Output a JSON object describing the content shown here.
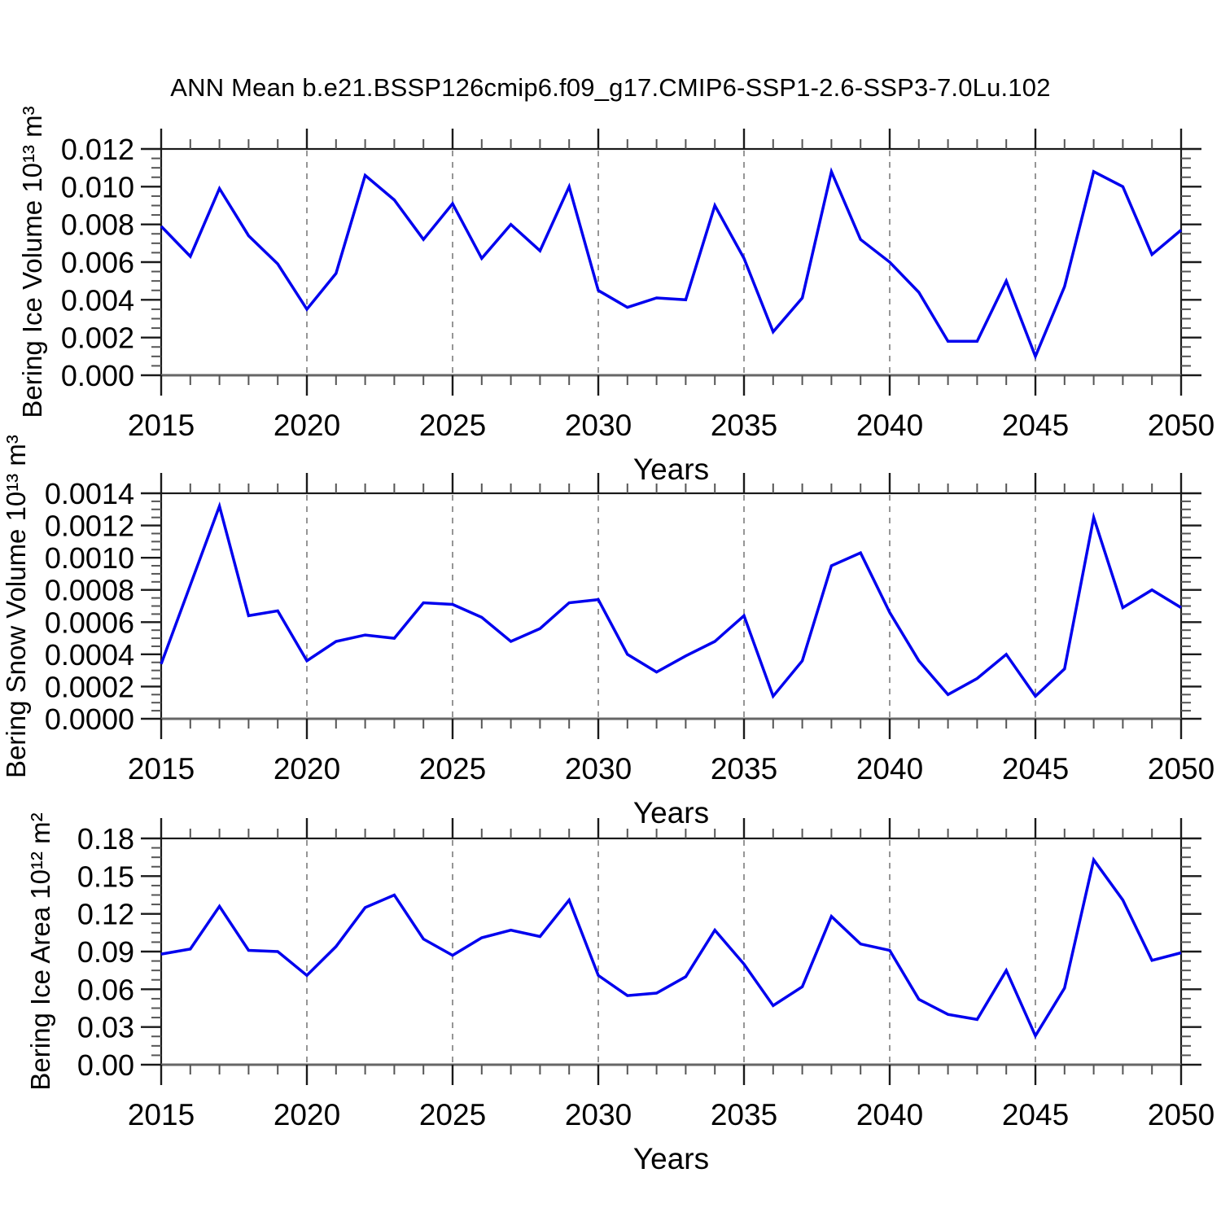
{
  "title": "ANN Mean b.e21.BSSP126cmip6.f09_g17.CMIP6-SSP1-2.6-SSP3-7.0Lu.102",
  "colors": {
    "line": "#0000ee",
    "grid": "#8a8a8a",
    "frame": "#1a1a1a",
    "axis_bottom": "#666666",
    "minor_tick": "#555555",
    "text": "#000000"
  },
  "chart_data": [
    {
      "type": "line",
      "name": "bering-ice-volume",
      "ylabel": "Bering Ice Volume 10¹³ m³",
      "xlabel": "Years",
      "xlim": [
        2015,
        2050
      ],
      "ylim": [
        0,
        0.012
      ],
      "grid_years": [
        2020,
        2025,
        2030,
        2035,
        2040,
        2045
      ],
      "ytick_labels": [
        "0.000",
        "0.002",
        "0.004",
        "0.006",
        "0.008",
        "0.010",
        "0.012"
      ],
      "xtick_labels": [
        "2015",
        "2020",
        "2025",
        "2030",
        "2035",
        "2040",
        "2045",
        "2050"
      ],
      "x": [
        2015,
        2016,
        2017,
        2018,
        2019,
        2020,
        2021,
        2022,
        2023,
        2024,
        2025,
        2026,
        2027,
        2028,
        2029,
        2030,
        2031,
        2032,
        2033,
        2034,
        2035,
        2036,
        2037,
        2038,
        2039,
        2040,
        2041,
        2042,
        2043,
        2044,
        2045,
        2046,
        2047,
        2048,
        2049,
        2050
      ],
      "values": [
        0.0079,
        0.0063,
        0.0099,
        0.0074,
        0.0059,
        0.0035,
        0.0054,
        0.0106,
        0.0093,
        0.0072,
        0.0091,
        0.0062,
        0.008,
        0.0066,
        0.01,
        0.0045,
        0.0036,
        0.0041,
        0.004,
        0.009,
        0.0062,
        0.0023,
        0.0041,
        0.0108,
        0.0072,
        0.006,
        0.0044,
        0.0018,
        0.0018,
        0.005,
        0.001,
        0.0047,
        0.0108,
        0.01,
        0.0064,
        0.0077
      ]
    },
    {
      "type": "line",
      "name": "bering-snow-volume",
      "ylabel": "Bering Snow Volume 10¹³ m³",
      "xlabel": "Years",
      "xlim": [
        2015,
        2050
      ],
      "ylim": [
        0,
        0.0014
      ],
      "grid_years": [
        2020,
        2025,
        2030,
        2035,
        2040,
        2045
      ],
      "ytick_labels": [
        "0.0000",
        "0.0002",
        "0.0004",
        "0.0006",
        "0.0008",
        "0.0010",
        "0.0012",
        "0.0014"
      ],
      "xtick_labels": [
        "2015",
        "2020",
        "2025",
        "2030",
        "2035",
        "2040",
        "2045",
        "2050"
      ],
      "x": [
        2015,
        2016,
        2017,
        2018,
        2019,
        2020,
        2021,
        2022,
        2023,
        2024,
        2025,
        2026,
        2027,
        2028,
        2029,
        2030,
        2031,
        2032,
        2033,
        2034,
        2035,
        2036,
        2037,
        2038,
        2039,
        2040,
        2041,
        2042,
        2043,
        2044,
        2045,
        2046,
        2047,
        2048,
        2049,
        2050
      ],
      "values": [
        0.00034,
        0.00083,
        0.00132,
        0.00064,
        0.00067,
        0.00036,
        0.00048,
        0.00052,
        0.0005,
        0.00072,
        0.00071,
        0.00063,
        0.00048,
        0.00056,
        0.00072,
        0.00074,
        0.0004,
        0.00029,
        0.00039,
        0.00048,
        0.00064,
        0.00014,
        0.00036,
        0.00095,
        0.00103,
        0.00066,
        0.00036,
        0.00015,
        0.00025,
        0.0004,
        0.00014,
        0.00031,
        0.00125,
        0.00069,
        0.0008,
        0.00069
      ]
    },
    {
      "type": "line",
      "name": "bering-ice-area",
      "ylabel": "Bering Ice Area 10¹² m²",
      "xlabel": "Years",
      "xlim": [
        2015,
        2050
      ],
      "ylim": [
        0,
        0.18
      ],
      "grid_years": [
        2020,
        2025,
        2030,
        2035,
        2040,
        2045
      ],
      "ytick_labels": [
        "0.00",
        "0.03",
        "0.06",
        "0.09",
        "0.12",
        "0.15",
        "0.18"
      ],
      "xtick_labels": [
        "2015",
        "2020",
        "2025",
        "2030",
        "2035",
        "2040",
        "2045",
        "2050"
      ],
      "x": [
        2015,
        2016,
        2017,
        2018,
        2019,
        2020,
        2021,
        2022,
        2023,
        2024,
        2025,
        2026,
        2027,
        2028,
        2029,
        2030,
        2031,
        2032,
        2033,
        2034,
        2035,
        2036,
        2037,
        2038,
        2039,
        2040,
        2041,
        2042,
        2043,
        2044,
        2045,
        2046,
        2047,
        2048,
        2049,
        2050
      ],
      "values": [
        0.088,
        0.092,
        0.126,
        0.091,
        0.09,
        0.071,
        0.094,
        0.125,
        0.135,
        0.1,
        0.087,
        0.101,
        0.107,
        0.102,
        0.131,
        0.071,
        0.055,
        0.057,
        0.07,
        0.107,
        0.08,
        0.047,
        0.062,
        0.118,
        0.096,
        0.091,
        0.052,
        0.04,
        0.036,
        0.075,
        0.023,
        0.061,
        0.163,
        0.131,
        0.083,
        0.089
      ]
    }
  ]
}
